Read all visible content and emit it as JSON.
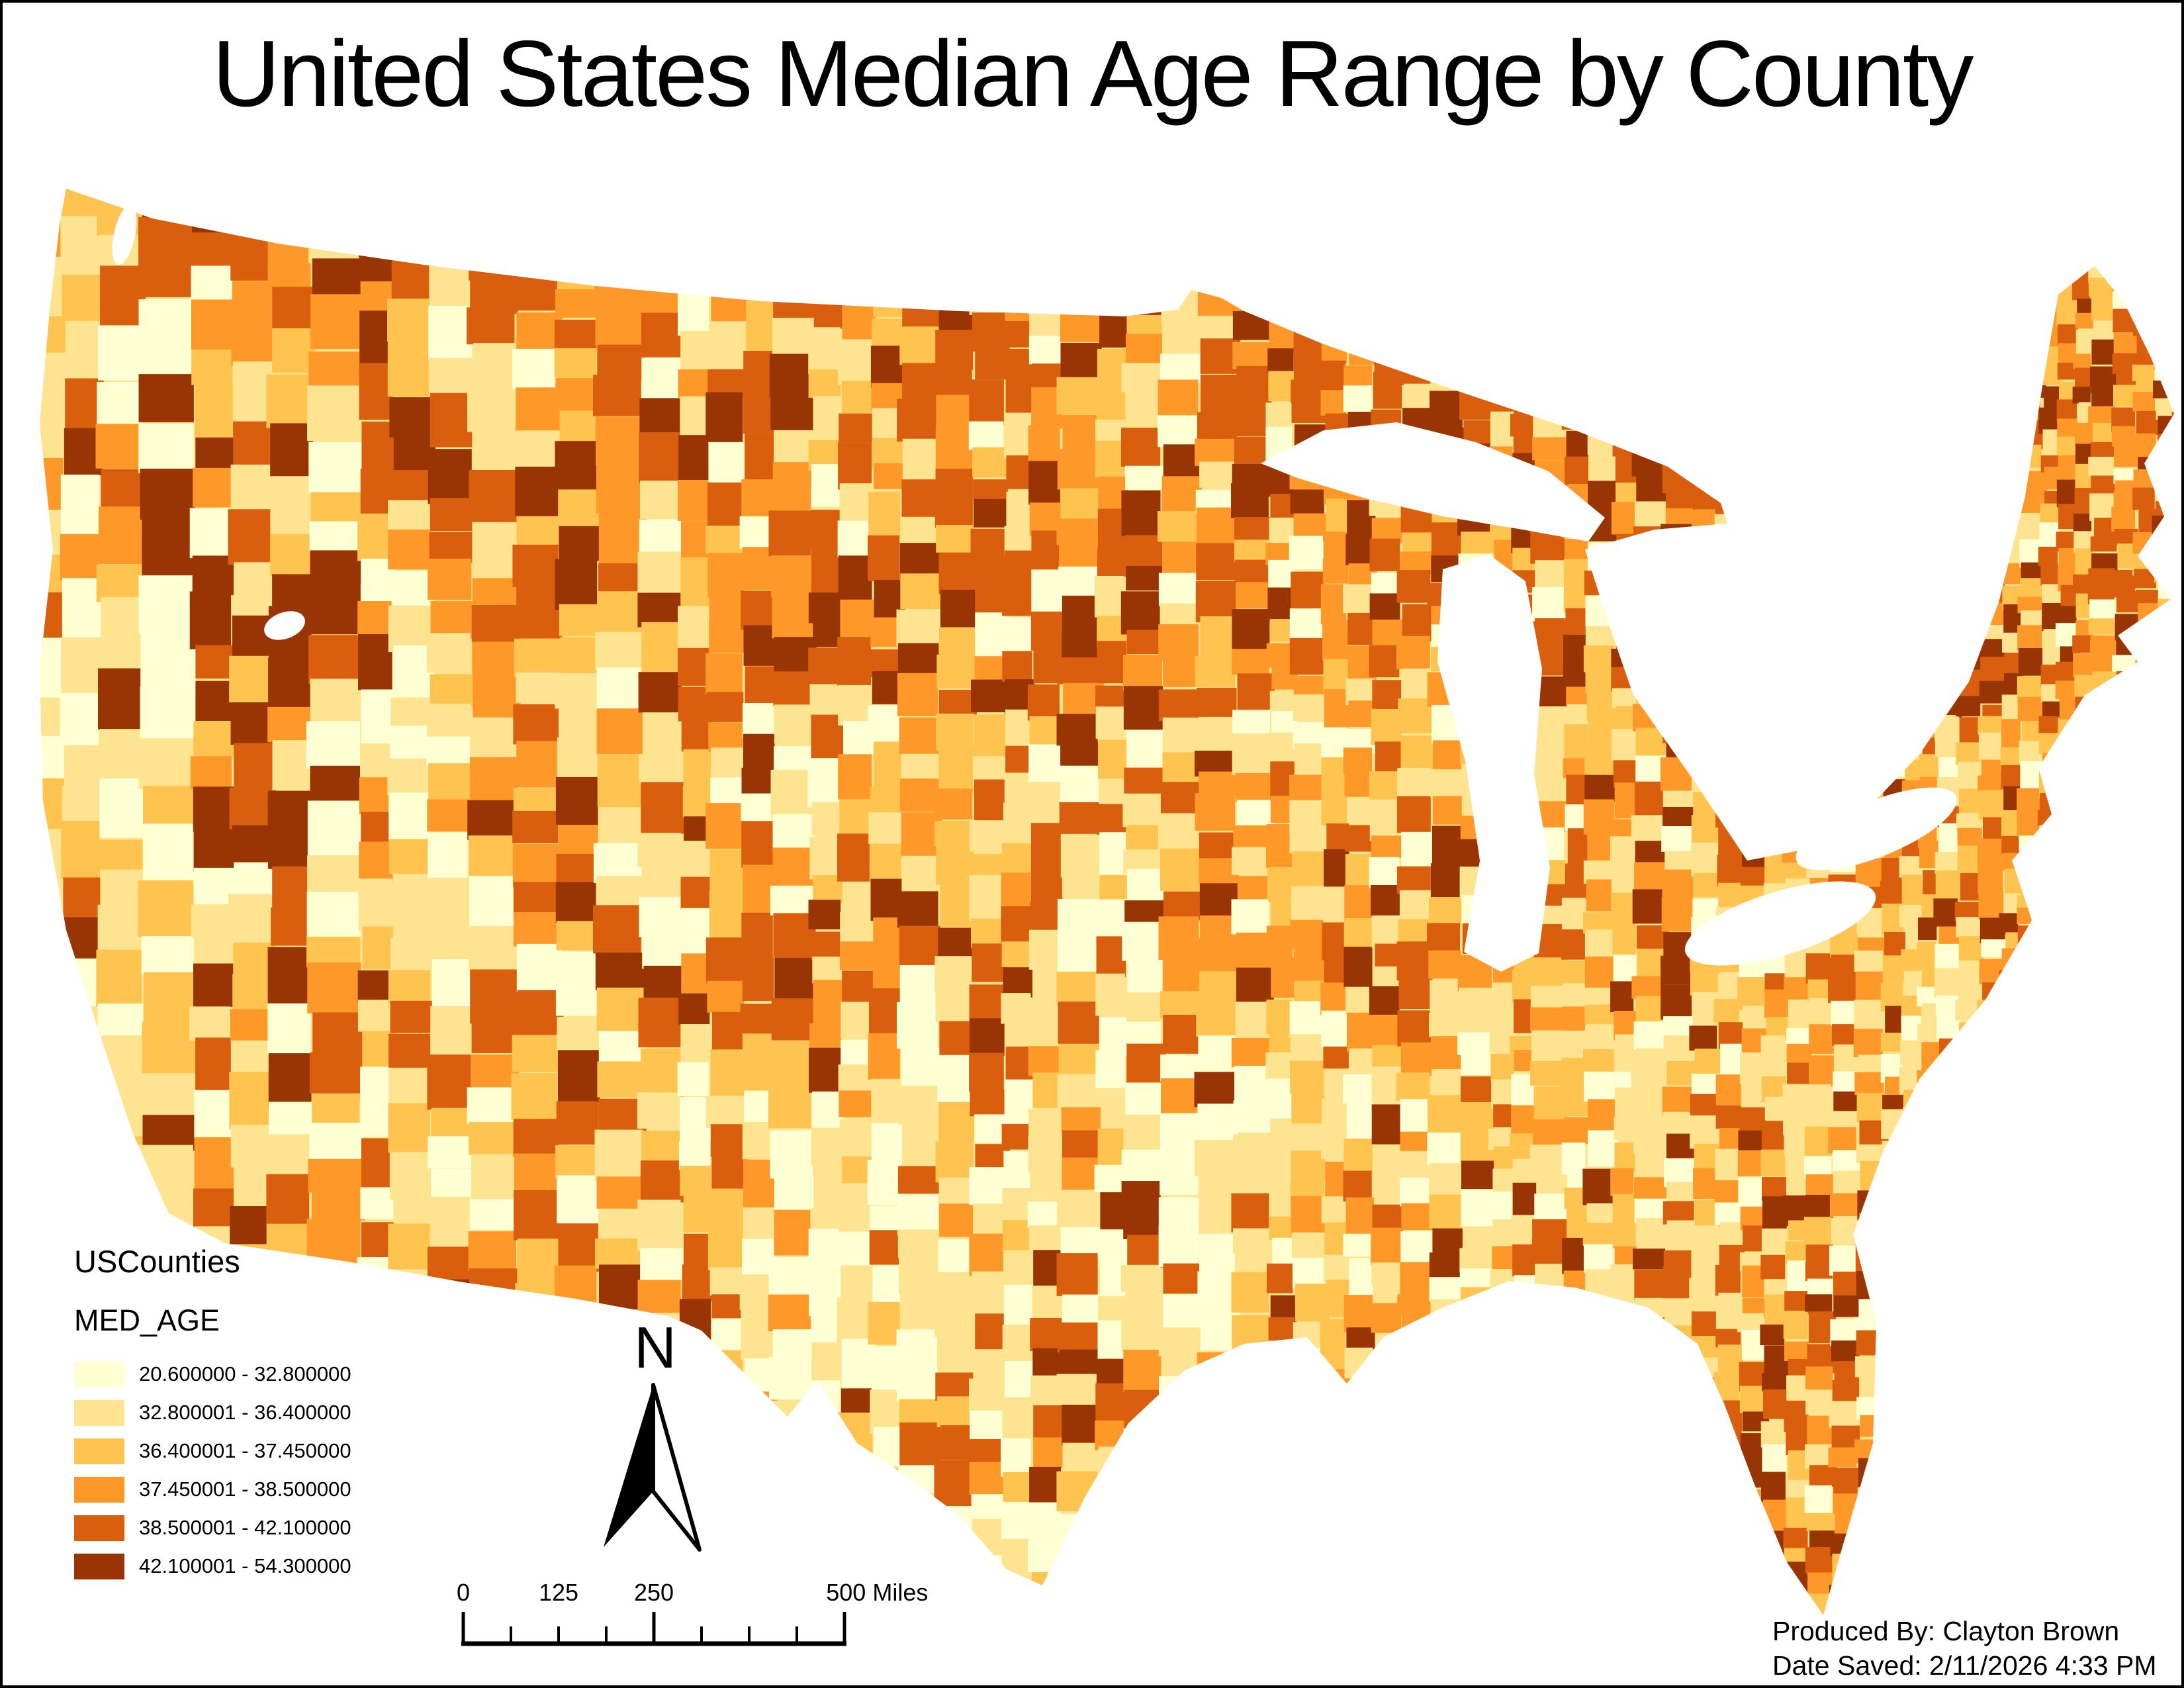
{
  "title": "United States Median Age Range by County",
  "map": {
    "name": "us-median-age-by-county-choropleth",
    "water_color": "#ffffff",
    "outline_visible": false
  },
  "legend": {
    "layer_title": "USCounties",
    "field_name": "MED_AGE",
    "classes": [
      {
        "label": "20.600000 - 32.800000",
        "color": "#FFFFD4"
      },
      {
        "label": "32.800001 - 36.400000",
        "color": "#FEE391"
      },
      {
        "label": "36.400001 - 37.450000",
        "color": "#FEC44F"
      },
      {
        "label": "37.450001 - 38.500000",
        "color": "#FE9929"
      },
      {
        "label": "38.500001 - 42.100000",
        "color": "#D95F0E"
      },
      {
        "label": "42.100001 - 54.300000",
        "color": "#993404"
      }
    ]
  },
  "north_arrow": {
    "label": "N"
  },
  "scale_bar": {
    "labels": [
      "0",
      "125",
      "250",
      "500 Miles"
    ],
    "max_miles": 500,
    "units": "Miles"
  },
  "credits": {
    "line1": "Produced By: Clayton Brown",
    "line2": "Date Saved: 2/11/2026 4:33 PM"
  }
}
